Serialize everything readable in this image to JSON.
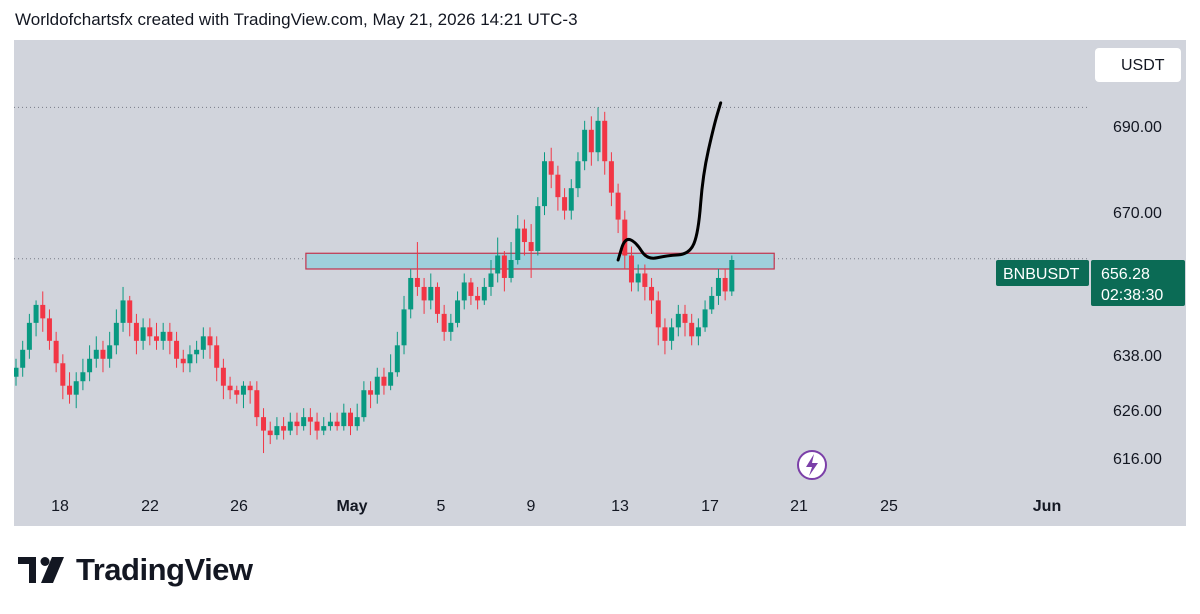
{
  "header": {
    "attribution": "Worldofchartsfx created with TradingView.com, May 21, 2026 14:21 UTC-3"
  },
  "footer": {
    "brand": "TradingView"
  },
  "colors": {
    "background": "#d1d4dc",
    "bull": "#089981",
    "bear": "#f23645",
    "zone_fill": "#9fd0dc",
    "zone_border": "#c2334d",
    "price_label_bg": "#0b6b55",
    "currency_badge_bg": "#ffffff",
    "drawing": "#000000",
    "event_icon": "#7b3fa8"
  },
  "chart_data": {
    "type": "candlestick",
    "symbol": "BNBUSDT",
    "currency": "USDT",
    "last_price": "656.28",
    "countdown": "02:38:30",
    "x_labels": [
      "18",
      "22",
      "26",
      "May",
      "5",
      "9",
      "13",
      "17",
      "21",
      "25",
      "Jun"
    ],
    "y_ticks": [
      "690.00",
      "670.00",
      "638.00",
      "626.00",
      "616.00"
    ],
    "y_range": [
      607,
      705
    ],
    "resistance_zone": {
      "low": 654,
      "high": 657.5,
      "from_day": 13.0,
      "to_day": 34.0
    },
    "projection": [
      [
        27.0,
        656
      ],
      [
        27.3,
        661
      ],
      [
        27.8,
        660
      ],
      [
        28.3,
        656
      ],
      [
        29.2,
        657
      ],
      [
        30.2,
        657.3
      ],
      [
        30.6,
        662
      ],
      [
        30.8,
        675
      ],
      [
        31.3,
        686
      ],
      [
        31.6,
        691
      ]
    ],
    "candles": [
      [
        0,
        630,
        632,
        634,
        628
      ],
      [
        0.3,
        632,
        636,
        638,
        630
      ],
      [
        0.6,
        636,
        642,
        644,
        634
      ],
      [
        0.9,
        642,
        646,
        647,
        639
      ],
      [
        1.2,
        646,
        643,
        649,
        640
      ],
      [
        1.5,
        643,
        638,
        645,
        636
      ],
      [
        1.8,
        638,
        633,
        640,
        631
      ],
      [
        2.1,
        633,
        628,
        635,
        625
      ],
      [
        2.4,
        628,
        626,
        631,
        624
      ],
      [
        2.7,
        626,
        629,
        631,
        623
      ],
      [
        3.0,
        629,
        631,
        634,
        627
      ],
      [
        3.3,
        631,
        634,
        637,
        629
      ],
      [
        3.6,
        634,
        636,
        639,
        632
      ],
      [
        3.9,
        636,
        634,
        638,
        631
      ],
      [
        4.2,
        634,
        637,
        640,
        632
      ],
      [
        4.5,
        637,
        642,
        645,
        635
      ],
      [
        4.8,
        642,
        647,
        650,
        640
      ],
      [
        5.1,
        647,
        642,
        648,
        639
      ],
      [
        5.4,
        642,
        638,
        644,
        635
      ],
      [
        5.7,
        638,
        641,
        643,
        636
      ],
      [
        6.0,
        641,
        639,
        643,
        637
      ],
      [
        6.3,
        639,
        638,
        642,
        636
      ],
      [
        6.6,
        638,
        640,
        642,
        636
      ],
      [
        6.9,
        640,
        638,
        642,
        635
      ],
      [
        7.2,
        638,
        634,
        640,
        632
      ],
      [
        7.5,
        634,
        633,
        636,
        631
      ],
      [
        7.8,
        633,
        635,
        637,
        631
      ],
      [
        8.1,
        635,
        636,
        638,
        633
      ],
      [
        8.4,
        636,
        639,
        641,
        634
      ],
      [
        8.7,
        639,
        637,
        641,
        634
      ],
      [
        9.0,
        637,
        632,
        639,
        629
      ],
      [
        9.3,
        632,
        628,
        634,
        625
      ],
      [
        9.6,
        628,
        627,
        630,
        625
      ],
      [
        9.9,
        627,
        626,
        628,
        624
      ],
      [
        10.2,
        626,
        628,
        629,
        623
      ],
      [
        10.5,
        628,
        627,
        629,
        624
      ],
      [
        10.8,
        627,
        621,
        629,
        619
      ],
      [
        11.1,
        621,
        618,
        623,
        613
      ],
      [
        11.4,
        618,
        617,
        620,
        615
      ],
      [
        11.7,
        617,
        619,
        621,
        616
      ],
      [
        12.0,
        619,
        618,
        621,
        616
      ],
      [
        12.3,
        618,
        620,
        622,
        617
      ],
      [
        12.6,
        620,
        619,
        622,
        617
      ],
      [
        12.9,
        619,
        621,
        623,
        618
      ],
      [
        13.2,
        621,
        620,
        623,
        617
      ],
      [
        13.5,
        620,
        618,
        622,
        616
      ],
      [
        13.8,
        618,
        619,
        621,
        617
      ],
      [
        14.1,
        619,
        620,
        622,
        618
      ],
      [
        14.4,
        620,
        619,
        622,
        618
      ],
      [
        14.7,
        619,
        622,
        624,
        618
      ],
      [
        15.0,
        622,
        619,
        623,
        617
      ],
      [
        15.3,
        619,
        621,
        624,
        618
      ],
      [
        15.6,
        621,
        627,
        629,
        620
      ],
      [
        15.9,
        627,
        626,
        629,
        623
      ],
      [
        16.2,
        626,
        630,
        632,
        624
      ],
      [
        16.5,
        630,
        628,
        632,
        626
      ],
      [
        16.8,
        628,
        631,
        635,
        627
      ],
      [
        17.1,
        631,
        637,
        640,
        630
      ],
      [
        17.4,
        637,
        645,
        648,
        635
      ],
      [
        17.7,
        645,
        652,
        654,
        643
      ],
      [
        18.0,
        652,
        650,
        660,
        648
      ],
      [
        18.3,
        650,
        647,
        652,
        644
      ],
      [
        18.6,
        647,
        650,
        653,
        645
      ],
      [
        18.9,
        650,
        644,
        651,
        642
      ],
      [
        19.2,
        644,
        640,
        646,
        638
      ],
      [
        19.5,
        640,
        642,
        644,
        638
      ],
      [
        19.8,
        642,
        647,
        649,
        641
      ],
      [
        20.1,
        647,
        651,
        653,
        645
      ],
      [
        20.4,
        651,
        648,
        652,
        646
      ],
      [
        20.7,
        648,
        647,
        650,
        645
      ],
      [
        21.0,
        647,
        650,
        652,
        646
      ],
      [
        21.3,
        650,
        653,
        656,
        648
      ],
      [
        21.6,
        653,
        657,
        661,
        651
      ],
      [
        21.9,
        657,
        652,
        658,
        649
      ],
      [
        22.2,
        652,
        656,
        660,
        651
      ],
      [
        22.5,
        656,
        663,
        666,
        655
      ],
      [
        22.8,
        663,
        660,
        665,
        657
      ],
      [
        23.1,
        660,
        658,
        664,
        652
      ],
      [
        23.4,
        658,
        668,
        670,
        657
      ],
      [
        23.7,
        668,
        678,
        680,
        666
      ],
      [
        24.0,
        678,
        675,
        681,
        672
      ],
      [
        24.3,
        675,
        670,
        677,
        667
      ],
      [
        24.6,
        670,
        667,
        672,
        665
      ],
      [
        24.9,
        667,
        672,
        674,
        665
      ],
      [
        25.2,
        672,
        678,
        680,
        670
      ],
      [
        25.5,
        678,
        685,
        687,
        676
      ],
      [
        25.8,
        685,
        680,
        688,
        677
      ],
      [
        26.1,
        680,
        687,
        690,
        678
      ],
      [
        26.4,
        687,
        678,
        689,
        675
      ],
      [
        26.7,
        678,
        671,
        680,
        668
      ],
      [
        27.0,
        671,
        665,
        673,
        662
      ],
      [
        27.3,
        665,
        657,
        667,
        654
      ],
      [
        27.6,
        657,
        651,
        659,
        649
      ],
      [
        27.9,
        651,
        653,
        655,
        649
      ],
      [
        28.2,
        653,
        650,
        655,
        647
      ],
      [
        28.5,
        650,
        647,
        652,
        644
      ],
      [
        28.8,
        647,
        641,
        649,
        637
      ],
      [
        29.1,
        641,
        638,
        643,
        635
      ],
      [
        29.4,
        638,
        641,
        643,
        636
      ],
      [
        29.7,
        641,
        644,
        646,
        639
      ],
      [
        30.0,
        644,
        642,
        646,
        639
      ],
      [
        30.3,
        642,
        639,
        644,
        637
      ],
      [
        30.6,
        639,
        641,
        643,
        637
      ],
      [
        30.9,
        641,
        645,
        647,
        640
      ],
      [
        31.2,
        645,
        648,
        650,
        644
      ],
      [
        31.5,
        648,
        652,
        654,
        646
      ],
      [
        31.8,
        652,
        649,
        654,
        647
      ],
      [
        32.1,
        649,
        656,
        657,
        648
      ]
    ]
  }
}
